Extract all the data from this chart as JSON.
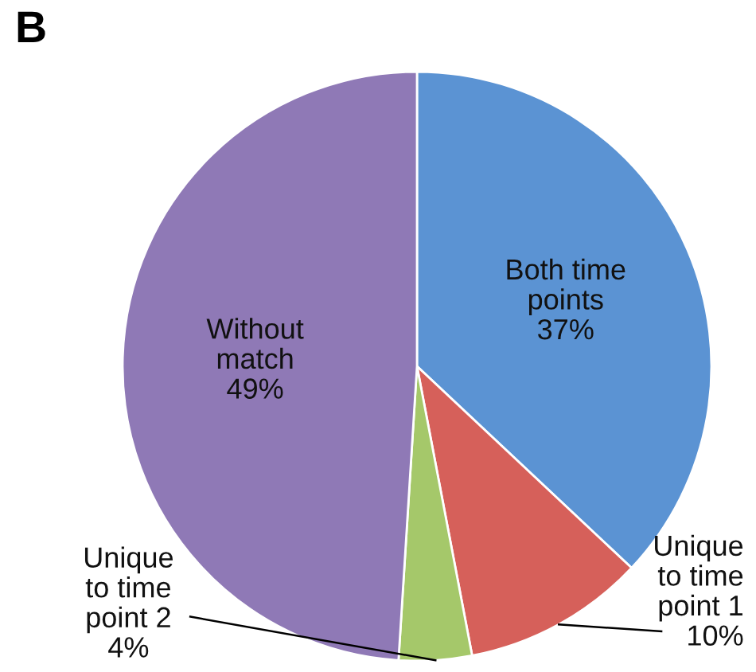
{
  "chart_data": {
    "type": "pie",
    "title": "B",
    "categories": [
      "Both time points",
      "Unique to time point 1",
      "Unique to time point 2",
      "Without match"
    ],
    "values": [
      37,
      10,
      4,
      49
    ],
    "value_labels": [
      "37%",
      "10%",
      "4%",
      "49%"
    ],
    "colors": [
      "#5b93d3",
      "#d6605a",
      "#a5c86a",
      "#8f79b6"
    ]
  }
}
